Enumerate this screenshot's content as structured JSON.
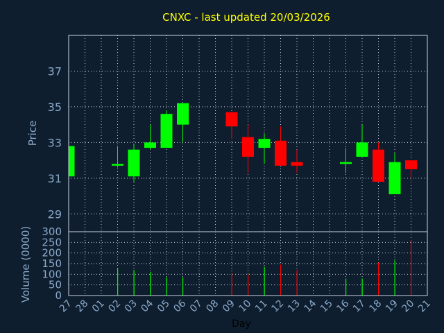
{
  "title": "CNXC - last updated 20/03/2026",
  "colors": {
    "background": "#0f1e2e",
    "title": "#ffff00",
    "up": "#00ff00",
    "down": "#ff0000",
    "axis_text": "#8aa9c9",
    "grid": "#c8d2dc"
  },
  "chart_data": [
    {
      "type": "candlestick",
      "ylabel": "Price",
      "ylim": [
        28,
        39
      ],
      "yticks": [
        29,
        31,
        33,
        35,
        37
      ],
      "grid": true,
      "categories": [
        "27",
        "28",
        "01",
        "02",
        "03",
        "04",
        "05",
        "06",
        "07",
        "08",
        "09",
        "10",
        "11",
        "12",
        "13",
        "14",
        "15",
        "16",
        "17",
        "18",
        "19",
        "20",
        "21"
      ],
      "candles": [
        {
          "x": "27",
          "open": 31.1,
          "close": 32.8,
          "high": 32.8,
          "low": 31.1
        },
        {
          "x": "02",
          "open": 31.7,
          "close": 31.8,
          "high": 32.8,
          "low": 31.6
        },
        {
          "x": "03",
          "open": 31.1,
          "close": 32.6,
          "high": 32.9,
          "low": 30.8
        },
        {
          "x": "04",
          "open": 32.7,
          "close": 33.0,
          "high": 34.0,
          "low": 32.6
        },
        {
          "x": "05",
          "open": 32.7,
          "close": 34.6,
          "high": 34.8,
          "low": 32.7
        },
        {
          "x": "06",
          "open": 34.0,
          "close": 35.2,
          "high": 35.2,
          "low": 33.0
        },
        {
          "x": "09",
          "open": 34.7,
          "close": 33.9,
          "high": 34.7,
          "low": 33.2
        },
        {
          "x": "10",
          "open": 33.3,
          "close": 32.2,
          "high": 34.0,
          "low": 31.3
        },
        {
          "x": "11",
          "open": 32.7,
          "close": 33.2,
          "high": 33.5,
          "low": 31.8
        },
        {
          "x": "12",
          "open": 33.1,
          "close": 31.7,
          "high": 33.9,
          "low": 31.7
        },
        {
          "x": "13",
          "open": 31.9,
          "close": 31.7,
          "high": 32.6,
          "low": 31.3
        },
        {
          "x": "16",
          "open": 31.8,
          "close": 31.9,
          "high": 32.7,
          "low": 31.3
        },
        {
          "x": "17",
          "open": 32.2,
          "close": 33.0,
          "high": 34.0,
          "low": 32.2
        },
        {
          "x": "18",
          "open": 32.6,
          "close": 30.8,
          "high": 33.0,
          "low": 30.8
        },
        {
          "x": "19",
          "open": 30.1,
          "close": 31.9,
          "high": 32.4,
          "low": 30.1
        },
        {
          "x": "20",
          "open": 32.0,
          "close": 31.5,
          "high": 32.0,
          "low": 31.0
        }
      ]
    },
    {
      "type": "bar",
      "ylabel": "Volume (0000)",
      "xlabel": "Day",
      "ylim": [
        0,
        300
      ],
      "yticks": [
        0,
        50,
        100,
        150,
        200,
        250,
        300
      ],
      "categories": [
        "27",
        "28",
        "01",
        "02",
        "03",
        "04",
        "05",
        "06",
        "07",
        "08",
        "09",
        "10",
        "11",
        "12",
        "13",
        "14",
        "15",
        "16",
        "17",
        "18",
        "19",
        "20",
        "21"
      ],
      "bars": [
        {
          "x": "02",
          "value": 130,
          "dir": "up"
        },
        {
          "x": "03",
          "value": 120,
          "dir": "up"
        },
        {
          "x": "04",
          "value": 110,
          "dir": "up"
        },
        {
          "x": "05",
          "value": 85,
          "dir": "up"
        },
        {
          "x": "06",
          "value": 85,
          "dir": "up"
        },
        {
          "x": "09",
          "value": 105,
          "dir": "down"
        },
        {
          "x": "10",
          "value": 100,
          "dir": "down"
        },
        {
          "x": "11",
          "value": 135,
          "dir": "up"
        },
        {
          "x": "12",
          "value": 145,
          "dir": "down"
        },
        {
          "x": "13",
          "value": 120,
          "dir": "down"
        },
        {
          "x": "16",
          "value": 80,
          "dir": "up"
        },
        {
          "x": "17",
          "value": 80,
          "dir": "up"
        },
        {
          "x": "18",
          "value": 155,
          "dir": "down"
        },
        {
          "x": "19",
          "value": 165,
          "dir": "up"
        },
        {
          "x": "20",
          "value": 260,
          "dir": "down"
        }
      ]
    }
  ]
}
